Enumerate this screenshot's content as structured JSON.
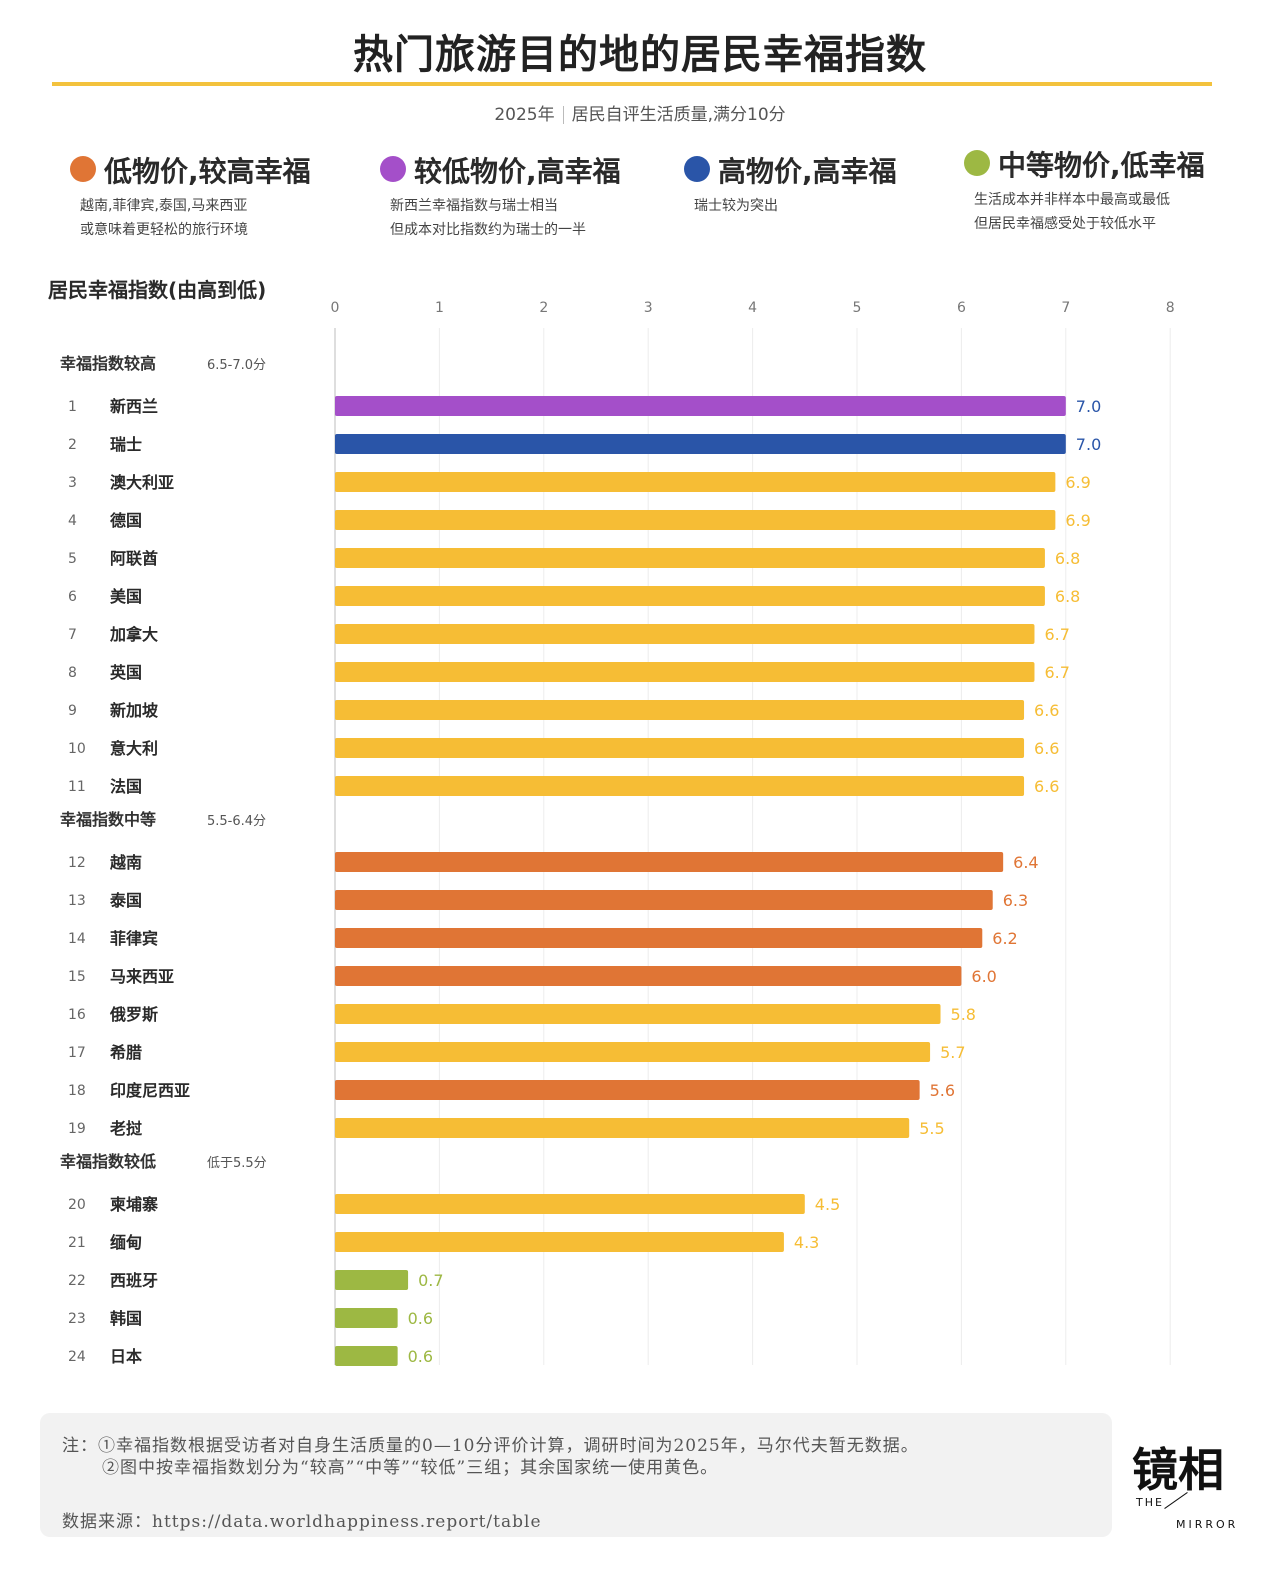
{
  "title": "热门旅游目的地的居民幸福指数",
  "subtitle": {
    "year": "2025年",
    "desc": "居民自评生活质量,满分10分"
  },
  "legend": [
    {
      "label": "低物价,较高幸福",
      "color": "#e07535",
      "desc": [
        "越南,菲律宾,泰国,马来西亚",
        "或意味着更轻松的旅行环境"
      ]
    },
    {
      "label": "较低物价,高幸福",
      "color": "#a44fc9",
      "desc": [
        "新西兰幸福指数与瑞士相当",
        "但成本对比指数约为瑞士的一半"
      ]
    },
    {
      "label": "高物价,高幸福",
      "color": "#2a55a8",
      "desc": [
        "瑞士较为突出"
      ]
    },
    {
      "label": "中等物价,低幸福",
      "color": "#9db843",
      "desc": [
        "生活成本并非样本中最高或最低",
        "但居民幸福感受处于较低水平"
      ]
    }
  ],
  "chart_heading": "居民幸福指数(由高到低)",
  "colors": {
    "purple": "#a44fc9",
    "blue": "#2a55a8",
    "yellow": "#f6bd35",
    "orange": "#e07535",
    "green": "#9db843",
    "value_blue": "#2a55a8"
  },
  "chart_data": {
    "type": "bar",
    "orientation": "horizontal",
    "xlim": [
      0,
      8
    ],
    "xticks": [
      0,
      1,
      2,
      3,
      4,
      5,
      6,
      7,
      8
    ],
    "grid": true,
    "groups": [
      {
        "name": "幸福指数较高",
        "range": "6.5-7.0分",
        "items": [
          {
            "rank": "1",
            "name": "新西兰",
            "value": 7.0,
            "label": "7.0",
            "color": "purple"
          },
          {
            "rank": "2",
            "name": "瑞士",
            "value": 7.0,
            "label": "7.0",
            "color": "blue"
          },
          {
            "rank": "3",
            "name": "澳大利亚",
            "value": 6.9,
            "label": "6.9",
            "color": "yellow"
          },
          {
            "rank": "4",
            "name": "德国",
            "value": 6.9,
            "label": "6.9",
            "color": "yellow"
          },
          {
            "rank": "5",
            "name": "阿联酋",
            "value": 6.8,
            "label": "6.8",
            "color": "yellow"
          },
          {
            "rank": "6",
            "name": "美国",
            "value": 6.8,
            "label": "6.8",
            "color": "yellow"
          },
          {
            "rank": "7",
            "name": "加拿大",
            "value": 6.7,
            "label": "6.7",
            "color": "yellow"
          },
          {
            "rank": "8",
            "name": "英国",
            "value": 6.7,
            "label": "6.7",
            "color": "yellow"
          },
          {
            "rank": "9",
            "name": "新加坡",
            "value": 6.6,
            "label": "6.6",
            "color": "yellow"
          },
          {
            "rank": "10",
            "name": "意大利",
            "value": 6.6,
            "label": "6.6",
            "color": "yellow"
          },
          {
            "rank": "11",
            "name": "法国",
            "value": 6.6,
            "label": "6.6",
            "color": "yellow"
          }
        ]
      },
      {
        "name": "幸福指数中等",
        "range": "5.5-6.4分",
        "items": [
          {
            "rank": "12",
            "name": "越南",
            "value": 6.4,
            "label": "6.4",
            "color": "orange"
          },
          {
            "rank": "13",
            "name": "泰国",
            "value": 6.3,
            "label": "6.3",
            "color": "orange"
          },
          {
            "rank": "14",
            "name": "菲律宾",
            "value": 6.2,
            "label": "6.2",
            "color": "orange"
          },
          {
            "rank": "15",
            "name": "马来西亚",
            "value": 6.0,
            "label": "6.0",
            "color": "orange"
          },
          {
            "rank": "16",
            "name": "俄罗斯",
            "value": 5.8,
            "label": "5.8",
            "color": "yellow"
          },
          {
            "rank": "17",
            "name": "希腊",
            "value": 5.7,
            "label": "5.7",
            "color": "yellow"
          },
          {
            "rank": "18",
            "name": "印度尼西亚",
            "value": 5.6,
            "label": "5.6",
            "color": "orange"
          },
          {
            "rank": "19",
            "name": "老挝",
            "value": 5.5,
            "label": "5.5",
            "color": "yellow"
          }
        ]
      },
      {
        "name": "幸福指数较低",
        "range": "低于5.5分",
        "items": [
          {
            "rank": "20",
            "name": "柬埔寨",
            "value": 4.5,
            "label": "4.5",
            "color": "yellow"
          },
          {
            "rank": "21",
            "name": "缅甸",
            "value": 4.3,
            "label": "4.3",
            "color": "yellow"
          },
          {
            "rank": "22",
            "name": "西班牙",
            "value": 0.7,
            "label": "0.7",
            "color": "green"
          },
          {
            "rank": "23",
            "name": "韩国",
            "value": 0.6,
            "label": "0.6",
            "color": "green"
          },
          {
            "rank": "24",
            "name": "日本",
            "value": 0.6,
            "label": "0.6",
            "color": "green"
          }
        ]
      }
    ]
  },
  "notes": {
    "line1": "注：①幸福指数根据受访者对自身生活质量的0—10分评价计算，调研时间为2025年，马尔代夫暂无数据。",
    "line2": "②图中按幸福指数划分为“较高”“中等”“较低”三组；其余国家统一使用黄色。",
    "source": "数据来源：https://data.worldhappiness.report/table"
  },
  "logo": {
    "mark": "镜相",
    "the": "THE",
    "mirror": "MIRROR"
  }
}
